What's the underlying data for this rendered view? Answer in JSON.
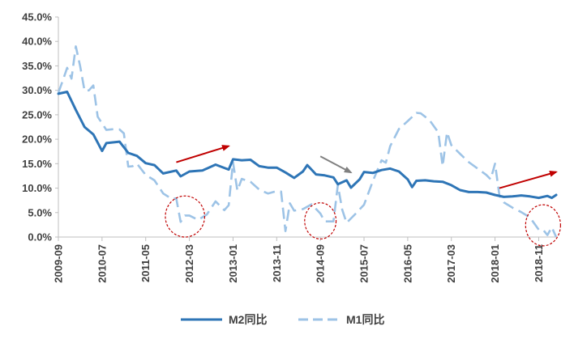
{
  "colors": {
    "m2": "#2E75B6",
    "m1": "#9DC3E6",
    "arrow_up": "#C00000",
    "arrow_gray": "#808080",
    "circle": "#C00000",
    "axis": "#BFBFBF",
    "text": "#404040"
  },
  "chart_data": {
    "type": "line",
    "title": "",
    "xlabel": "",
    "ylabel": "",
    "ylim": [
      0,
      45
    ],
    "y_ticks": [
      "0.0%",
      "5.0%",
      "10.0%",
      "15.0%",
      "20.0%",
      "25.0%",
      "30.0%",
      "35.0%",
      "40.0%",
      "45.0%"
    ],
    "x_range": [
      "2009-09",
      "2019-03"
    ],
    "x_tick_labels": [
      "2009-09",
      "2010-07",
      "2011-05",
      "2012-03",
      "2013-01",
      "2013-11",
      "2014-09",
      "2015-07",
      "2016-05",
      "2017-03",
      "2018-01",
      "2018-11"
    ],
    "legend_position": "bottom",
    "grid": false,
    "series": [
      {
        "name": "M2同比",
        "style": "solid",
        "points": [
          [
            "2009-09",
            29.3
          ],
          [
            "2009-11",
            29.7
          ],
          [
            "2010-01",
            26.0
          ],
          [
            "2010-03",
            22.5
          ],
          [
            "2010-05",
            21.0
          ],
          [
            "2010-07",
            17.6
          ],
          [
            "2010-08",
            19.2
          ],
          [
            "2010-11",
            19.5
          ],
          [
            "2011-01",
            17.2
          ],
          [
            "2011-03",
            16.6
          ],
          [
            "2011-05",
            15.1
          ],
          [
            "2011-07",
            14.7
          ],
          [
            "2011-09",
            13.0
          ],
          [
            "2011-12",
            13.6
          ],
          [
            "2012-01",
            12.4
          ],
          [
            "2012-03",
            13.4
          ],
          [
            "2012-06",
            13.6
          ],
          [
            "2012-09",
            14.8
          ],
          [
            "2012-12",
            13.8
          ],
          [
            "2013-01",
            15.9
          ],
          [
            "2013-03",
            15.7
          ],
          [
            "2013-05",
            15.8
          ],
          [
            "2013-07",
            14.5
          ],
          [
            "2013-09",
            14.2
          ],
          [
            "2013-11",
            14.2
          ],
          [
            "2014-01",
            13.2
          ],
          [
            "2014-03",
            12.1
          ],
          [
            "2014-05",
            13.4
          ],
          [
            "2014-06",
            14.7
          ],
          [
            "2014-08",
            12.8
          ],
          [
            "2014-10",
            12.6
          ],
          [
            "2014-12",
            12.2
          ],
          [
            "2015-01",
            10.8
          ],
          [
            "2015-03",
            11.6
          ],
          [
            "2015-04",
            10.1
          ],
          [
            "2015-06",
            11.8
          ],
          [
            "2015-07",
            13.3
          ],
          [
            "2015-09",
            13.1
          ],
          [
            "2015-11",
            13.7
          ],
          [
            "2016-01",
            14.0
          ],
          [
            "2016-03",
            13.4
          ],
          [
            "2016-05",
            11.8
          ],
          [
            "2016-06",
            10.2
          ],
          [
            "2016-07",
            11.5
          ],
          [
            "2016-09",
            11.6
          ],
          [
            "2016-11",
            11.4
          ],
          [
            "2017-01",
            11.3
          ],
          [
            "2017-03",
            10.6
          ],
          [
            "2017-05",
            9.6
          ],
          [
            "2017-07",
            9.2
          ],
          [
            "2017-09",
            9.2
          ],
          [
            "2017-11",
            9.1
          ],
          [
            "2018-01",
            8.6
          ],
          [
            "2018-03",
            8.2
          ],
          [
            "2018-05",
            8.3
          ],
          [
            "2018-07",
            8.5
          ],
          [
            "2018-09",
            8.3
          ],
          [
            "2018-11",
            8.0
          ],
          [
            "2019-01",
            8.4
          ],
          [
            "2019-02",
            8.0
          ],
          [
            "2019-03",
            8.6
          ]
        ]
      },
      {
        "name": "M1同比",
        "style": "dashed",
        "points": [
          [
            "2009-09",
            29.5
          ],
          [
            "2009-10",
            32.0
          ],
          [
            "2009-11",
            34.6
          ],
          [
            "2009-12",
            32.4
          ],
          [
            "2010-01",
            39.0
          ],
          [
            "2010-02",
            34.9
          ],
          [
            "2010-03",
            29.9
          ],
          [
            "2010-04",
            30.0
          ],
          [
            "2010-05",
            31.0
          ],
          [
            "2010-06",
            24.6
          ],
          [
            "2010-08",
            21.9
          ],
          [
            "2010-10",
            22.1
          ],
          [
            "2010-11",
            22.0
          ],
          [
            "2010-12",
            21.2
          ],
          [
            "2011-01",
            14.4
          ],
          [
            "2011-02",
            14.5
          ],
          [
            "2011-03",
            15.0
          ],
          [
            "2011-05",
            12.7
          ],
          [
            "2011-07",
            11.6
          ],
          [
            "2011-09",
            8.9
          ],
          [
            "2011-11",
            7.8
          ],
          [
            "2011-12",
            7.9
          ],
          [
            "2012-01",
            3.1
          ],
          [
            "2012-02",
            4.4
          ],
          [
            "2012-03",
            4.4
          ],
          [
            "2012-05",
            3.5
          ],
          [
            "2012-07",
            4.6
          ],
          [
            "2012-09",
            7.3
          ],
          [
            "2012-11",
            5.5
          ],
          [
            "2012-12",
            6.5
          ],
          [
            "2013-01",
            15.3
          ],
          [
            "2013-02",
            9.5
          ],
          [
            "2013-03",
            11.9
          ],
          [
            "2013-05",
            11.3
          ],
          [
            "2013-07",
            9.7
          ],
          [
            "2013-09",
            8.9
          ],
          [
            "2013-11",
            9.4
          ],
          [
            "2013-12",
            9.3
          ],
          [
            "2014-01",
            1.2
          ],
          [
            "2014-02",
            6.9
          ],
          [
            "2014-03",
            5.4
          ],
          [
            "2014-05",
            5.7
          ],
          [
            "2014-07",
            6.7
          ],
          [
            "2014-09",
            4.8
          ],
          [
            "2014-10",
            3.2
          ],
          [
            "2014-12",
            3.2
          ],
          [
            "2015-01",
            10.6
          ],
          [
            "2015-02",
            5.6
          ],
          [
            "2015-03",
            2.9
          ],
          [
            "2015-05",
            4.7
          ],
          [
            "2015-07",
            6.6
          ],
          [
            "2015-09",
            11.4
          ],
          [
            "2015-11",
            15.7
          ],
          [
            "2015-12",
            15.2
          ],
          [
            "2016-01",
            18.6
          ],
          [
            "2016-03",
            22.1
          ],
          [
            "2016-05",
            23.7
          ],
          [
            "2016-07",
            25.4
          ],
          [
            "2016-08",
            25.3
          ],
          [
            "2016-10",
            23.9
          ],
          [
            "2016-12",
            21.4
          ],
          [
            "2017-01",
            14.5
          ],
          [
            "2017-02",
            21.4
          ],
          [
            "2017-03",
            18.8
          ],
          [
            "2017-05",
            17.0
          ],
          [
            "2017-07",
            15.3
          ],
          [
            "2017-09",
            14.0
          ],
          [
            "2017-11",
            12.7
          ],
          [
            "2017-12",
            11.8
          ],
          [
            "2018-01",
            15.0
          ],
          [
            "2018-02",
            8.5
          ],
          [
            "2018-03",
            7.1
          ],
          [
            "2018-05",
            6.0
          ],
          [
            "2018-07",
            5.1
          ],
          [
            "2018-09",
            4.0
          ],
          [
            "2018-11",
            1.5
          ],
          [
            "2018-12",
            1.5
          ],
          [
            "2019-01",
            0.4
          ],
          [
            "2019-02",
            2.0
          ],
          [
            "2019-03",
            0.0
          ]
        ]
      }
    ],
    "annotations": [
      {
        "type": "arrow",
        "color": "arrow_up",
        "from": [
          "2011-12",
          15.3
        ],
        "to": [
          "2012-12",
          18.6
        ]
      },
      {
        "type": "arrow",
        "color": "arrow_gray",
        "from": [
          "2014-09",
          16.5
        ],
        "to": [
          "2015-04",
          13.2
        ]
      },
      {
        "type": "arrow",
        "color": "arrow_up",
        "from": [
          "2018-02",
          10.0
        ],
        "to": [
          "2019-03",
          13.3
        ]
      },
      {
        "type": "ellipse",
        "center": [
          "2012-02",
          4.2
        ],
        "rx_months": 4.5,
        "ry_value": 4.2
      },
      {
        "type": "ellipse",
        "center": [
          "2014-09",
          3.3
        ],
        "rx_months": 3.6,
        "ry_value": 3.7
      },
      {
        "type": "ellipse",
        "center": [
          "2018-12",
          2.4
        ],
        "rx_months": 4.0,
        "ry_value": 4.2
      }
    ]
  }
}
